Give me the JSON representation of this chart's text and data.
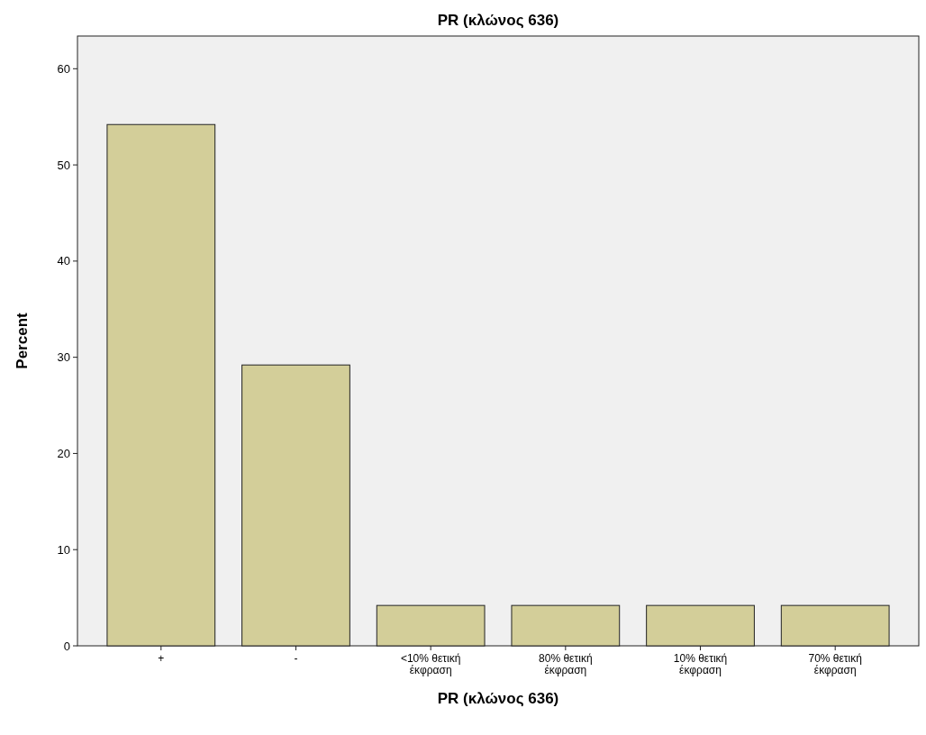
{
  "chart_data": {
    "type": "bar",
    "title": "PR (κλώνος 636)",
    "xlabel": "PR (κλώνος 636)",
    "ylabel": "Percent",
    "categories": [
      "+",
      "-",
      "<10% θετική έκφραση",
      "80% θετική έκφραση",
      "10% θετική έκφραση",
      "70% θετική έκφραση"
    ],
    "values": [
      54.2,
      29.2,
      4.2,
      4.2,
      4.2,
      4.2
    ],
    "color": "#d3ce99",
    "ylim": [
      0,
      63.4
    ],
    "yticks": [
      0,
      10,
      20,
      30,
      40,
      50,
      60
    ],
    "grid": false
  }
}
